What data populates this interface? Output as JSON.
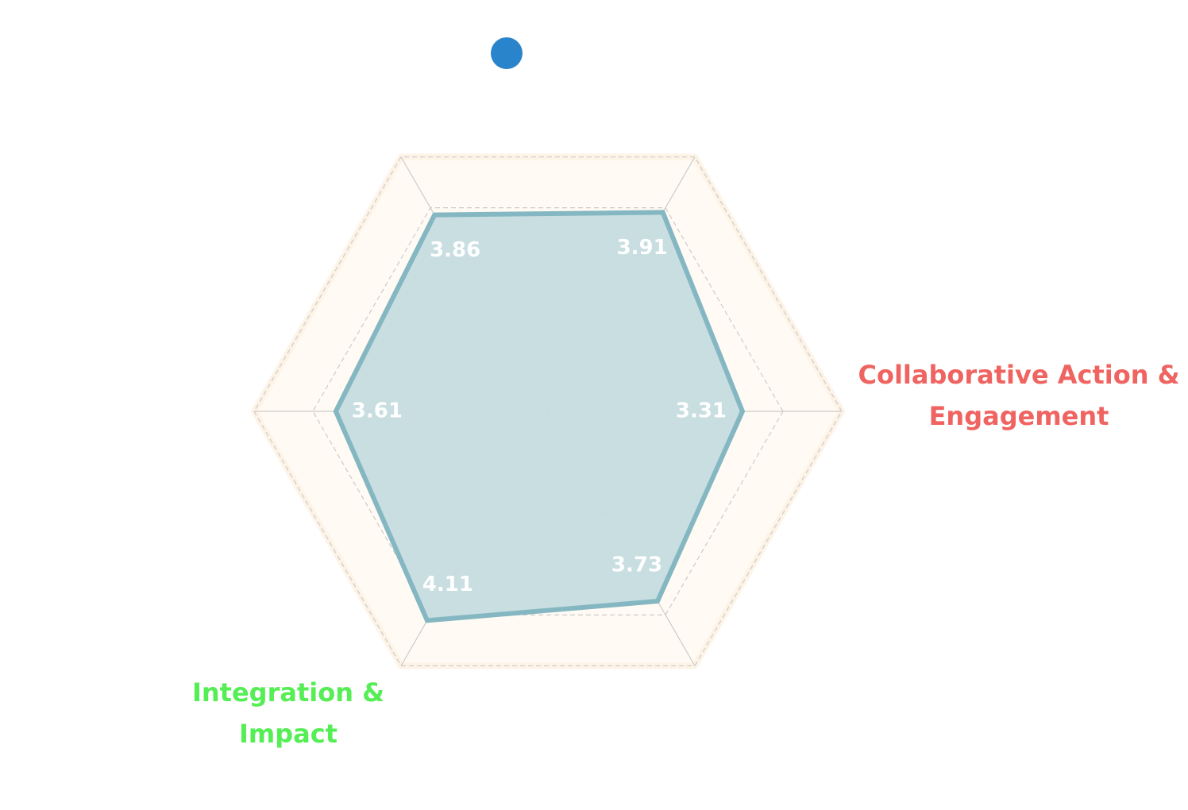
{
  "chart_data": {
    "type": "radar",
    "categories": [
      "Collaborative Action & Engagement",
      null,
      null,
      null,
      "Integration & Impact",
      null
    ],
    "category_colors": [
      "#ef6461",
      null,
      null,
      null,
      "#55ee55",
      null
    ],
    "series": [
      {
        "color": "#84b7c2",
        "fill": "#c5dcdf",
        "values": [
          3.31,
          3.91,
          3.86,
          3.61,
          4.11,
          3.73
        ]
      }
    ],
    "legend_color": "#2a84cc",
    "ylim": [
      0,
      5
    ],
    "yticks": [
      1,
      2,
      3,
      4,
      5
    ],
    "grid": true
  }
}
